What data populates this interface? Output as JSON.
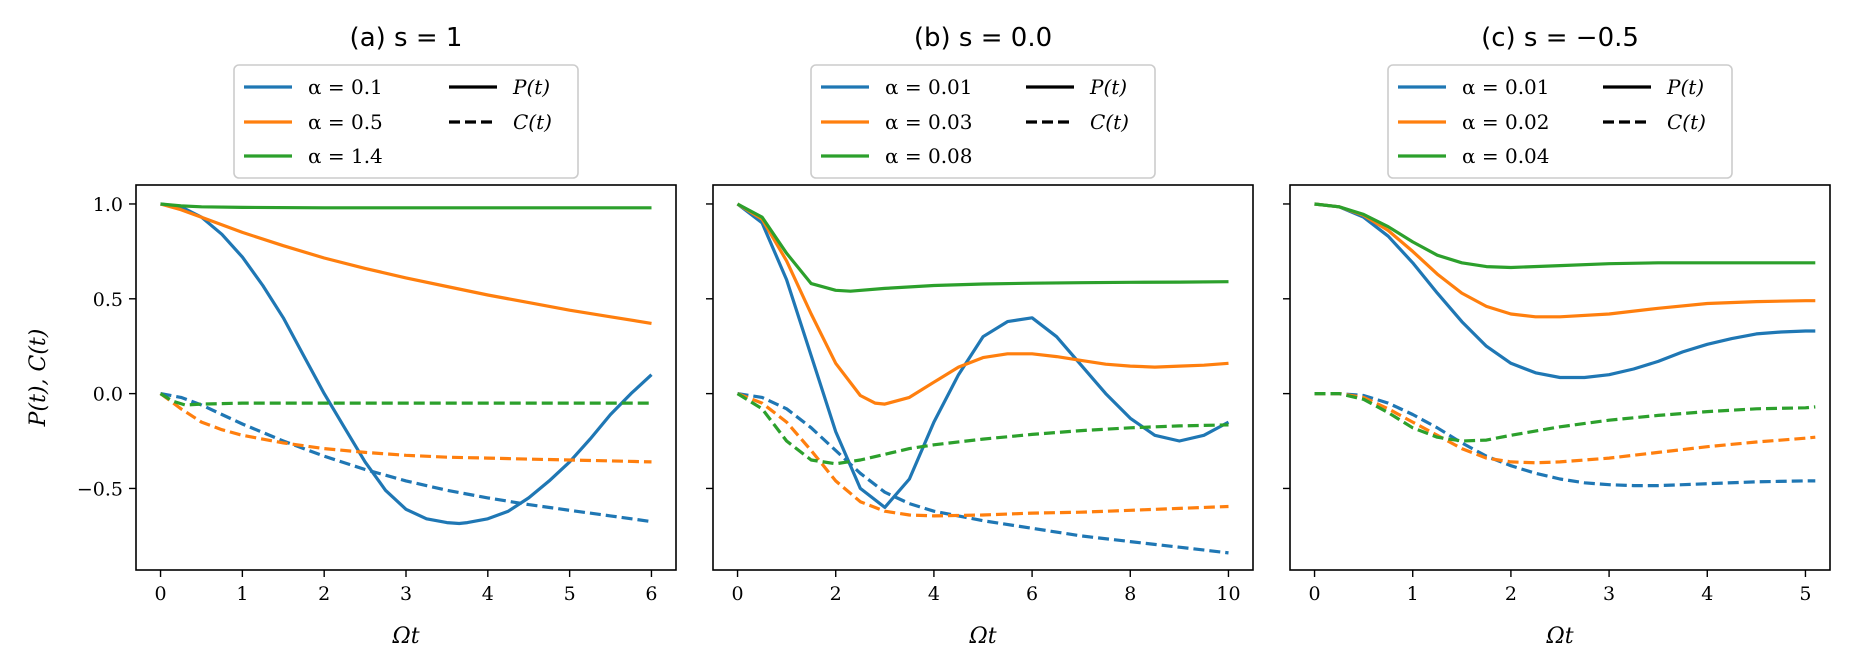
{
  "figure": {
    "ylabel": "P(t), C(t)"
  },
  "chart_data": [
    {
      "type": "line",
      "title": "(a) s = 1",
      "xlabel": "Ωt",
      "ylabel": "P(t), C(t)",
      "xlim": [
        -0.3,
        6.3
      ],
      "ylim": [
        -0.93,
        1.1
      ],
      "xticks": [
        0,
        1,
        2,
        3,
        4,
        5,
        6
      ],
      "yticks": [
        -0.5,
        0.0,
        0.5,
        1.0
      ],
      "ytick_labels": [
        "−0.5",
        "0.0",
        "0.5",
        "1.0"
      ],
      "legend": {
        "placement": "top-center (above axes)",
        "entries": [
          "α = 0.1",
          "α = 0.5",
          "α = 1.4",
          "P(t)",
          "C(t)"
        ]
      },
      "series": [
        {
          "name": "α = 0.1",
          "quantity": "P(t)",
          "color": "#1f77b4",
          "style": "solid",
          "x": [
            0,
            0.25,
            0.5,
            0.75,
            1.0,
            1.25,
            1.5,
            1.75,
            2.0,
            2.25,
            2.5,
            2.75,
            3.0,
            3.25,
            3.5,
            3.65,
            3.75,
            4.0,
            4.25,
            4.5,
            4.75,
            5.0,
            5.25,
            5.5,
            5.75,
            6.0
          ],
          "y": [
            1.0,
            0.985,
            0.93,
            0.84,
            0.72,
            0.57,
            0.4,
            0.2,
            0.0,
            -0.18,
            -0.36,
            -0.51,
            -0.61,
            -0.66,
            -0.68,
            -0.685,
            -0.68,
            -0.66,
            -0.62,
            -0.55,
            -0.46,
            -0.36,
            -0.24,
            -0.11,
            0.0,
            0.1
          ]
        },
        {
          "name": "α = 0.5",
          "quantity": "P(t)",
          "color": "#ff7f0e",
          "style": "solid",
          "x": [
            0,
            0.25,
            0.5,
            1.0,
            1.5,
            2.0,
            2.5,
            3.0,
            3.5,
            4.0,
            4.5,
            5.0,
            5.5,
            6.0
          ],
          "y": [
            1.0,
            0.97,
            0.93,
            0.85,
            0.78,
            0.715,
            0.66,
            0.61,
            0.565,
            0.52,
            0.48,
            0.44,
            0.405,
            0.37
          ]
        },
        {
          "name": "α = 1.4",
          "quantity": "P(t)",
          "color": "#2ca02c",
          "style": "solid",
          "x": [
            0,
            0.25,
            0.5,
            1.0,
            2.0,
            3.0,
            4.0,
            5.0,
            6.0
          ],
          "y": [
            1.0,
            0.99,
            0.985,
            0.982,
            0.98,
            0.98,
            0.98,
            0.98,
            0.98
          ]
        },
        {
          "name": "α = 0.1",
          "quantity": "C(t)",
          "color": "#1f77b4",
          "style": "dashed",
          "x": [
            0,
            0.25,
            0.5,
            0.75,
            1.0,
            1.5,
            2.0,
            2.5,
            3.0,
            3.5,
            4.0,
            4.5,
            5.0,
            5.5,
            6.0
          ],
          "y": [
            0.0,
            -0.02,
            -0.06,
            -0.11,
            -0.16,
            -0.25,
            -0.33,
            -0.4,
            -0.46,
            -0.51,
            -0.55,
            -0.585,
            -0.615,
            -0.645,
            -0.675
          ]
        },
        {
          "name": "α = 0.5",
          "quantity": "C(t)",
          "color": "#ff7f0e",
          "style": "dashed",
          "x": [
            0,
            0.25,
            0.5,
            0.75,
            1.0,
            1.5,
            2.0,
            2.5,
            3.0,
            3.5,
            4.0,
            4.5,
            5.0,
            5.5,
            6.0
          ],
          "y": [
            0.0,
            -0.08,
            -0.15,
            -0.19,
            -0.22,
            -0.26,
            -0.29,
            -0.31,
            -0.325,
            -0.335,
            -0.34,
            -0.345,
            -0.35,
            -0.355,
            -0.36
          ]
        },
        {
          "name": "α = 1.4",
          "quantity": "C(t)",
          "color": "#2ca02c",
          "style": "dashed",
          "x": [
            0,
            0.15,
            0.3,
            0.5,
            1.0,
            2.0,
            3.0,
            4.0,
            5.0,
            6.0
          ],
          "y": [
            0.0,
            -0.04,
            -0.06,
            -0.055,
            -0.05,
            -0.05,
            -0.05,
            -0.05,
            -0.05,
            -0.05
          ]
        }
      ]
    },
    {
      "type": "line",
      "title": "(b) s = 0.0",
      "xlabel": "Ωt",
      "ylabel": "",
      "xlim": [
        -0.5,
        10.5
      ],
      "ylim": [
        -0.93,
        1.1
      ],
      "xticks": [
        0,
        2,
        4,
        6,
        8,
        10
      ],
      "yticks": [
        -0.5,
        0.0,
        0.5,
        1.0
      ],
      "legend": {
        "placement": "top-center (above axes)",
        "entries": [
          "α = 0.01",
          "α = 0.03",
          "α = 0.08",
          "P(t)",
          "C(t)"
        ]
      },
      "series": [
        {
          "name": "α = 0.01",
          "quantity": "P(t)",
          "color": "#1f77b4",
          "style": "solid",
          "x": [
            0,
            0.5,
            1.0,
            1.5,
            2.0,
            2.5,
            3.0,
            3.5,
            4.0,
            4.5,
            5.0,
            5.5,
            6.0,
            6.5,
            7.0,
            7.5,
            8.0,
            8.5,
            9.0,
            9.5,
            10.0
          ],
          "y": [
            1.0,
            0.9,
            0.6,
            0.2,
            -0.2,
            -0.5,
            -0.6,
            -0.45,
            -0.15,
            0.1,
            0.3,
            0.38,
            0.4,
            0.3,
            0.15,
            0.0,
            -0.13,
            -0.22,
            -0.25,
            -0.22,
            -0.15
          ]
        },
        {
          "name": "α = 0.03",
          "quantity": "P(t)",
          "color": "#ff7f0e",
          "style": "solid",
          "x": [
            0,
            0.5,
            1.0,
            1.5,
            2.0,
            2.5,
            2.8,
            3.0,
            3.5,
            4.0,
            4.5,
            5.0,
            5.5,
            6.0,
            6.5,
            7.0,
            7.5,
            8.0,
            8.5,
            9.0,
            9.5,
            10.0
          ],
          "y": [
            1.0,
            0.92,
            0.7,
            0.42,
            0.16,
            -0.01,
            -0.05,
            -0.055,
            -0.02,
            0.06,
            0.14,
            0.19,
            0.21,
            0.21,
            0.195,
            0.175,
            0.155,
            0.145,
            0.14,
            0.145,
            0.15,
            0.16
          ]
        },
        {
          "name": "α = 0.08",
          "quantity": "P(t)",
          "color": "#2ca02c",
          "style": "solid",
          "x": [
            0,
            0.5,
            1.0,
            1.5,
            2.0,
            2.3,
            3.0,
            4.0,
            5.0,
            6.0,
            7.0,
            8.0,
            9.0,
            10.0
          ],
          "y": [
            1.0,
            0.93,
            0.74,
            0.58,
            0.545,
            0.54,
            0.555,
            0.57,
            0.578,
            0.582,
            0.585,
            0.587,
            0.588,
            0.59
          ]
        },
        {
          "name": "α = 0.01",
          "quantity": "C(t)",
          "color": "#1f77b4",
          "style": "dashed",
          "x": [
            0,
            0.5,
            1.0,
            1.5,
            2.0,
            2.5,
            3.0,
            3.5,
            4.0,
            5.0,
            6.0,
            7.0,
            8.0,
            9.0,
            10.0
          ],
          "y": [
            0.0,
            -0.02,
            -0.08,
            -0.18,
            -0.3,
            -0.42,
            -0.52,
            -0.58,
            -0.62,
            -0.67,
            -0.71,
            -0.75,
            -0.78,
            -0.81,
            -0.84
          ]
        },
        {
          "name": "α = 0.03",
          "quantity": "C(t)",
          "color": "#ff7f0e",
          "style": "dashed",
          "x": [
            0,
            0.5,
            1.0,
            1.5,
            2.0,
            2.5,
            3.0,
            3.5,
            4.0,
            5.0,
            6.0,
            7.0,
            8.0,
            9.0,
            10.0
          ],
          "y": [
            0.0,
            -0.05,
            -0.15,
            -0.3,
            -0.46,
            -0.57,
            -0.62,
            -0.64,
            -0.645,
            -0.64,
            -0.63,
            -0.625,
            -0.615,
            -0.605,
            -0.595
          ]
        },
        {
          "name": "α = 0.08",
          "quantity": "C(t)",
          "color": "#2ca02c",
          "style": "dashed",
          "x": [
            0,
            0.5,
            1.0,
            1.5,
            2.0,
            2.5,
            3.0,
            3.5,
            4.0,
            5.0,
            6.0,
            7.0,
            8.0,
            9.0,
            10.0
          ],
          "y": [
            0.0,
            -0.08,
            -0.25,
            -0.35,
            -0.37,
            -0.35,
            -0.32,
            -0.29,
            -0.27,
            -0.24,
            -0.215,
            -0.195,
            -0.18,
            -0.17,
            -0.165
          ]
        }
      ]
    },
    {
      "type": "line",
      "title": "(c) s = −0.5",
      "xlabel": "Ωt",
      "ylabel": "",
      "xlim": [
        -0.25,
        5.25
      ],
      "ylim": [
        -0.93,
        1.1
      ],
      "xticks": [
        0,
        1,
        2,
        3,
        4,
        5
      ],
      "yticks": [
        -0.5,
        0.0,
        0.5,
        1.0
      ],
      "legend": {
        "placement": "top-center (above axes)",
        "entries": [
          "α = 0.01",
          "α = 0.02",
          "α = 0.04",
          "P(t)",
          "C(t)"
        ]
      },
      "series": [
        {
          "name": "α = 0.01",
          "quantity": "P(t)",
          "color": "#1f77b4",
          "style": "solid",
          "x": [
            0,
            0.25,
            0.5,
            0.75,
            1.0,
            1.25,
            1.5,
            1.75,
            2.0,
            2.25,
            2.5,
            2.75,
            3.0,
            3.25,
            3.5,
            3.75,
            4.0,
            4.25,
            4.5,
            4.75,
            5.0,
            5.1
          ],
          "y": [
            1.0,
            0.985,
            0.93,
            0.83,
            0.69,
            0.53,
            0.38,
            0.25,
            0.16,
            0.11,
            0.085,
            0.085,
            0.1,
            0.13,
            0.17,
            0.22,
            0.26,
            0.29,
            0.315,
            0.325,
            0.33,
            0.33
          ]
        },
        {
          "name": "α = 0.02",
          "quantity": "P(t)",
          "color": "#ff7f0e",
          "style": "solid",
          "x": [
            0,
            0.25,
            0.5,
            0.75,
            1.0,
            1.25,
            1.5,
            1.75,
            2.0,
            2.25,
            2.5,
            3.0,
            3.5,
            4.0,
            4.5,
            5.0,
            5.1
          ],
          "y": [
            1.0,
            0.985,
            0.94,
            0.86,
            0.75,
            0.63,
            0.53,
            0.46,
            0.42,
            0.405,
            0.405,
            0.42,
            0.45,
            0.475,
            0.485,
            0.49,
            0.49
          ]
        },
        {
          "name": "α = 0.04",
          "quantity": "P(t)",
          "color": "#2ca02c",
          "style": "solid",
          "x": [
            0,
            0.25,
            0.5,
            0.75,
            1.0,
            1.25,
            1.5,
            1.75,
            2.0,
            2.5,
            3.0,
            3.5,
            4.0,
            4.5,
            5.0,
            5.1
          ],
          "y": [
            1.0,
            0.985,
            0.945,
            0.88,
            0.8,
            0.73,
            0.69,
            0.67,
            0.665,
            0.675,
            0.685,
            0.69,
            0.69,
            0.69,
            0.69,
            0.69
          ]
        },
        {
          "name": "α = 0.01",
          "quantity": "C(t)",
          "color": "#1f77b4",
          "style": "dashed",
          "x": [
            0,
            0.25,
            0.5,
            0.75,
            1.0,
            1.25,
            1.5,
            1.75,
            2.0,
            2.25,
            2.5,
            2.75,
            3.0,
            3.25,
            3.5,
            3.75,
            4.0,
            4.5,
            5.0,
            5.1
          ],
          "y": [
            0.0,
            0.0,
            -0.01,
            -0.05,
            -0.11,
            -0.18,
            -0.26,
            -0.33,
            -0.38,
            -0.42,
            -0.45,
            -0.47,
            -0.48,
            -0.485,
            -0.485,
            -0.48,
            -0.475,
            -0.465,
            -0.46,
            -0.46
          ]
        },
        {
          "name": "α = 0.02",
          "quantity": "C(t)",
          "color": "#ff7f0e",
          "style": "dashed",
          "x": [
            0,
            0.25,
            0.5,
            0.75,
            1.0,
            1.25,
            1.5,
            1.75,
            2.0,
            2.25,
            2.5,
            3.0,
            3.5,
            4.0,
            4.5,
            5.0,
            5.1
          ],
          "y": [
            0.0,
            0.0,
            -0.02,
            -0.08,
            -0.15,
            -0.22,
            -0.29,
            -0.34,
            -0.36,
            -0.365,
            -0.36,
            -0.34,
            -0.31,
            -0.28,
            -0.255,
            -0.235,
            -0.23
          ]
        },
        {
          "name": "α = 0.04",
          "quantity": "C(t)",
          "color": "#2ca02c",
          "style": "dashed",
          "x": [
            0,
            0.25,
            0.5,
            0.75,
            1.0,
            1.25,
            1.5,
            1.75,
            2.0,
            2.5,
            3.0,
            3.5,
            4.0,
            4.5,
            5.0,
            5.1
          ],
          "y": [
            0.0,
            0.0,
            -0.03,
            -0.1,
            -0.18,
            -0.23,
            -0.25,
            -0.245,
            -0.22,
            -0.175,
            -0.14,
            -0.115,
            -0.095,
            -0.08,
            -0.075,
            -0.07
          ]
        }
      ]
    }
  ]
}
